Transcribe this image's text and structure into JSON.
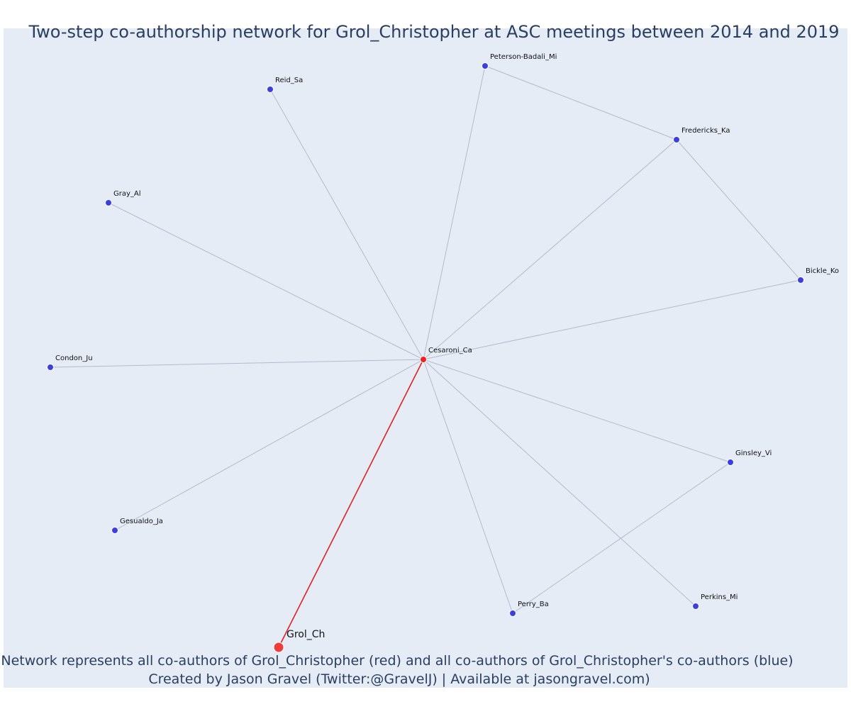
{
  "title": "Two-step co-authorship network for Grol_Christopher at ASC meetings between 2014 and 2019",
  "caption": {
    "line1": "Network represents all co-authors of Grol_Christopher (red) and all co-authors of Grol_Christopher's co-authors (blue)",
    "line2": "Created by Jason Gravel (Twitter:@GravelJ) | Available at jasongravel.com)"
  },
  "colors": {
    "background": "#e5ecf6",
    "ego": "#ef3b3b",
    "first_step": "#ef2020",
    "second_step": "#3b3fe0",
    "edge": "#b6b9c9",
    "ego_edge": "#e02020",
    "text": "#2a3f5f"
  },
  "network": {
    "nodes": [
      {
        "id": "Grol_Ch",
        "label": "Grol_Ch",
        "group": "ego"
      },
      {
        "id": "Cesaroni_Ca",
        "label": "Cesaroni_Ca",
        "group": "co-author"
      },
      {
        "id": "Reid_Sa",
        "label": "Reid_Sa",
        "group": "co-author-of-co-author"
      },
      {
        "id": "Peterson-Badali_Mi",
        "label": "Peterson-Badali_Mi",
        "group": "co-author-of-co-author"
      },
      {
        "id": "Fredericks_Ka",
        "label": "Fredericks_Ka",
        "group": "co-author-of-co-author"
      },
      {
        "id": "Gray_Al",
        "label": "Gray_Al",
        "group": "co-author-of-co-author"
      },
      {
        "id": "Bickle_Ko",
        "label": "Bickle_Ko",
        "group": "co-author-of-co-author"
      },
      {
        "id": "Condon_Ju",
        "label": "Condon_Ju",
        "group": "co-author-of-co-author"
      },
      {
        "id": "Ginsley_Vi",
        "label": "Ginsley_Vi",
        "group": "co-author-of-co-author"
      },
      {
        "id": "Gesualdo_Ja",
        "label": "Gesualdo_Ja",
        "group": "co-author-of-co-author"
      },
      {
        "id": "Perkins_Mi",
        "label": "Perkins_Mi",
        "group": "co-author-of-co-author"
      },
      {
        "id": "Perry_Ba",
        "label": "Perry_Ba",
        "group": "co-author-of-co-author"
      }
    ],
    "edges": [
      {
        "source": "Grol_Ch",
        "target": "Cesaroni_Ca",
        "type": "ego"
      },
      {
        "source": "Cesaroni_Ca",
        "target": "Reid_Sa",
        "type": "other"
      },
      {
        "source": "Cesaroni_Ca",
        "target": "Peterson-Badali_Mi",
        "type": "other"
      },
      {
        "source": "Cesaroni_Ca",
        "target": "Fredericks_Ka",
        "type": "other"
      },
      {
        "source": "Cesaroni_Ca",
        "target": "Gray_Al",
        "type": "other"
      },
      {
        "source": "Cesaroni_Ca",
        "target": "Bickle_Ko",
        "type": "other"
      },
      {
        "source": "Cesaroni_Ca",
        "target": "Condon_Ju",
        "type": "other"
      },
      {
        "source": "Cesaroni_Ca",
        "target": "Ginsley_Vi",
        "type": "other"
      },
      {
        "source": "Cesaroni_Ca",
        "target": "Gesualdo_Ja",
        "type": "other"
      },
      {
        "source": "Cesaroni_Ca",
        "target": "Perkins_Mi",
        "type": "other"
      },
      {
        "source": "Cesaroni_Ca",
        "target": "Perry_Ba",
        "type": "other"
      },
      {
        "source": "Peterson-Badali_Mi",
        "target": "Fredericks_Ka",
        "type": "other"
      },
      {
        "source": "Fredericks_Ka",
        "target": "Bickle_Ko",
        "type": "other"
      },
      {
        "source": "Ginsley_Vi",
        "target": "Perry_Ba",
        "type": "other"
      }
    ]
  }
}
